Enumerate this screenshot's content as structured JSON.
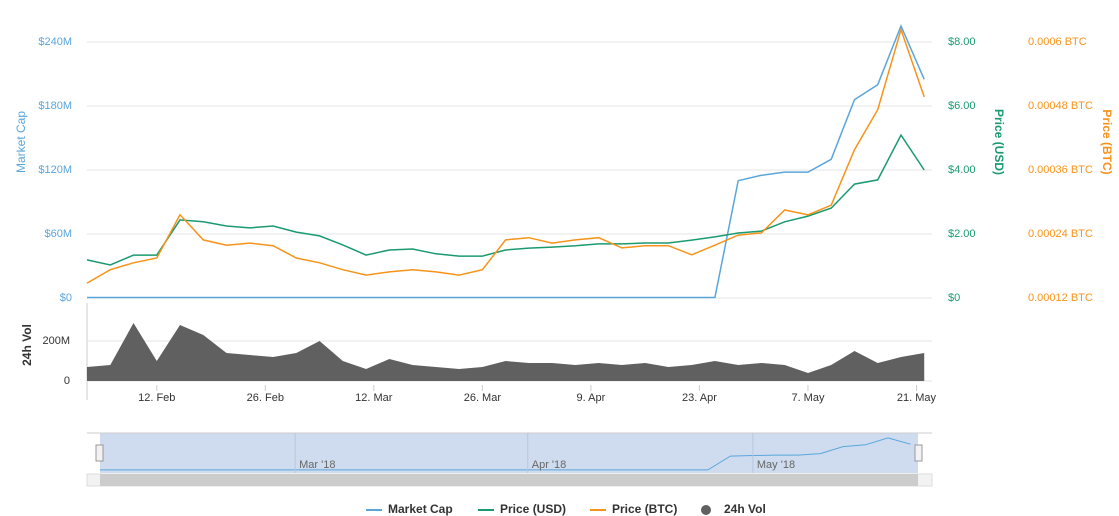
{
  "chart_data": {
    "type": "line",
    "x": [
      "2018-02-03",
      "2018-02-06",
      "2018-02-09",
      "2018-02-12",
      "2018-02-15",
      "2018-02-18",
      "2018-02-21",
      "2018-02-24",
      "2018-02-27",
      "2018-03-02",
      "2018-03-05",
      "2018-03-08",
      "2018-03-11",
      "2018-03-14",
      "2018-03-17",
      "2018-03-20",
      "2018-03-23",
      "2018-03-26",
      "2018-03-29",
      "2018-04-01",
      "2018-04-04",
      "2018-04-07",
      "2018-04-10",
      "2018-04-13",
      "2018-04-16",
      "2018-04-19",
      "2018-04-22",
      "2018-04-25",
      "2018-04-28",
      "2018-05-01",
      "2018-05-04",
      "2018-05-07",
      "2018-05-10",
      "2018-05-13",
      "2018-05-16",
      "2018-05-19",
      "2018-05-22"
    ],
    "xlim": [
      "2018-02-03",
      "2018-05-23"
    ],
    "xticks": [
      {
        "value": "2018-02-12",
        "label": "12. Feb"
      },
      {
        "value": "2018-02-26",
        "label": "26. Feb"
      },
      {
        "value": "2018-03-12",
        "label": "12. Mar"
      },
      {
        "value": "2018-03-26",
        "label": "26. Mar"
      },
      {
        "value": "2018-04-09",
        "label": "9. Apr"
      },
      {
        "value": "2018-04-23",
        "label": "23. Apr"
      },
      {
        "value": "2018-05-07",
        "label": "7. May"
      },
      {
        "value": "2018-05-21",
        "label": "21. May"
      }
    ],
    "ylabel": "Market Cap",
    "ylim": [
      0,
      270000000
    ],
    "yticks": [
      {
        "value": 0,
        "label": "$0"
      },
      {
        "value": 60000000,
        "label": "$60M"
      },
      {
        "value": 120000000,
        "label": "$120M"
      },
      {
        "value": 180000000,
        "label": "$180M"
      },
      {
        "value": 240000000,
        "label": "$240M"
      }
    ],
    "y2label": "Price (USD)",
    "y2lim": [
      0,
      9
    ],
    "y2ticks": [
      {
        "value": 0,
        "label": "$0"
      },
      {
        "value": 2,
        "label": "$2.00"
      },
      {
        "value": 4,
        "label": "$4.00"
      },
      {
        "value": 6,
        "label": "$6.00"
      },
      {
        "value": 8,
        "label": "$8.00"
      }
    ],
    "y3label": "Price (BTC)",
    "y3lim": [
      0.00012,
      0.00066
    ],
    "y3ticks": [
      {
        "value": 0.00012,
        "label": "0.00012 BTC"
      },
      {
        "value": 0.00024,
        "label": "0.00024 BTC"
      },
      {
        "value": 0.00036,
        "label": "0.00036 BTC"
      },
      {
        "value": 0.00048,
        "label": "0.00048 BTC"
      },
      {
        "value": 0.0006,
        "label": "0.0006 BTC"
      }
    ],
    "vollabel": "24h Vol",
    "vollim": [
      0,
      350000000
    ],
    "volticks": [
      0,
      {
        "value": 200000000,
        "label": "200M"
      }
    ],
    "grid": true,
    "legend": "bottom",
    "series": [
      {
        "name": "Market Cap",
        "color": "#5aa6dc",
        "axis": "y",
        "values": [
          500000,
          500000,
          500000,
          500000,
          500000,
          500000,
          500000,
          500000,
          500000,
          500000,
          500000,
          500000,
          500000,
          500000,
          500000,
          500000,
          500000,
          500000,
          500000,
          500000,
          500000,
          500000,
          500000,
          500000,
          500000,
          500000,
          500000,
          500000,
          110000000,
          115000000,
          118000000,
          118000000,
          130000000,
          186000000,
          200000000,
          255000000,
          205000000
        ]
      },
      {
        "name": "Price (USD)",
        "color": "#1a9a6f",
        "axis": "y2",
        "values": [
          1.19,
          1.03,
          1.34,
          1.34,
          2.44,
          2.38,
          2.25,
          2.19,
          2.25,
          2.06,
          1.94,
          1.66,
          1.34,
          1.5,
          1.53,
          1.38,
          1.31,
          1.31,
          1.5,
          1.56,
          1.59,
          1.63,
          1.69,
          1.69,
          1.72,
          1.72,
          1.81,
          1.91,
          2.03,
          2.09,
          2.38,
          2.56,
          2.81,
          3.56,
          3.69,
          5.09,
          4.0
        ]
      },
      {
        "name": "Price (BTC)",
        "color": "#f7931a",
        "axis": "y3",
        "values": [
          0.000148,
          0.000173,
          0.000186,
          0.000195,
          0.000276,
          0.000229,
          0.000219,
          0.000223,
          0.000218,
          0.000195,
          0.000186,
          0.000173,
          0.000163,
          0.000169,
          0.000173,
          0.000169,
          0.000163,
          0.000173,
          0.000229,
          0.000233,
          0.000223,
          0.000229,
          0.000233,
          0.000214,
          0.000218,
          0.000218,
          0.000201,
          0.000219,
          0.000238,
          0.000242,
          0.000285,
          0.000276,
          0.000294,
          0.000398,
          0.000473,
          0.000623,
          0.000497
        ]
      },
      {
        "name": "24h Vol",
        "color": "#606060",
        "axis": "vol",
        "values": [
          70000000,
          80000000,
          290000000,
          100000000,
          280000000,
          230000000,
          140000000,
          130000000,
          120000000,
          140000000,
          200000000,
          100000000,
          60000000,
          110000000,
          80000000,
          70000000,
          60000000,
          70000000,
          100000000,
          90000000,
          90000000,
          80000000,
          90000000,
          80000000,
          90000000,
          70000000,
          80000000,
          100000000,
          80000000,
          90000000,
          80000000,
          40000000,
          80000000,
          150000000,
          90000000,
          120000000,
          140000000
        ]
      }
    ],
    "navigator": {
      "labels": [
        {
          "value": "2018-03-01",
          "label": "Mar '18"
        },
        {
          "value": "2018-04-01",
          "label": "Apr '18"
        },
        {
          "value": "2018-05-01",
          "label": "May '18"
        }
      ]
    }
  }
}
